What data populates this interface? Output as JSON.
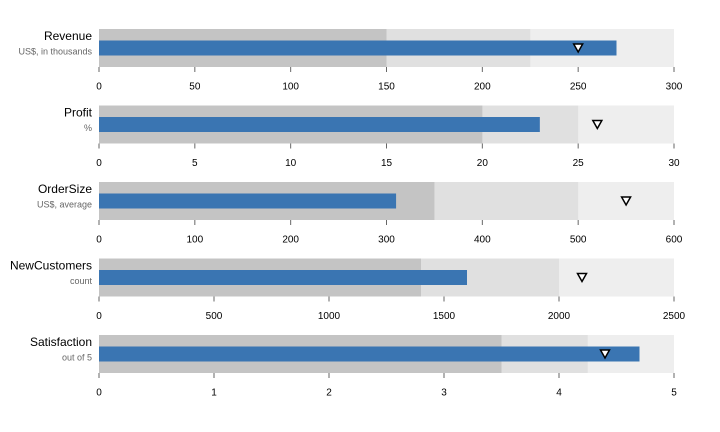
{
  "chart_data": [
    {
      "type": "bullet",
      "title": "Revenue",
      "subtitle": "US$, in thousands",
      "ranges": [
        150,
        225,
        300
      ],
      "measure": 270,
      "marker": 250,
      "xlim": [
        0,
        300
      ],
      "xticks": [
        0,
        50,
        100,
        150,
        200,
        250,
        300
      ],
      "range_colors": [
        "#c4c4c4",
        "#e0e0e0",
        "#eeeeee"
      ],
      "color": "#3a75b2"
    },
    {
      "type": "bullet",
      "title": "Profit",
      "subtitle": "%",
      "ranges": [
        20,
        25,
        30
      ],
      "measure": 23,
      "marker": 26,
      "xlim": [
        0,
        30
      ],
      "xticks": [
        0,
        5,
        10,
        15,
        20,
        25,
        30
      ],
      "range_colors": [
        "#c4c4c4",
        "#e0e0e0",
        "#eeeeee"
      ],
      "color": "#3a75b2"
    },
    {
      "type": "bullet",
      "title": "OrderSize",
      "subtitle": "US$, average",
      "ranges": [
        350,
        500,
        600
      ],
      "measure": 310,
      "marker": 550,
      "xlim": [
        0,
        600
      ],
      "xticks": [
        0,
        100,
        200,
        300,
        400,
        500,
        600
      ],
      "range_colors": [
        "#c4c4c4",
        "#e0e0e0",
        "#eeeeee"
      ],
      "color": "#3a75b2"
    },
    {
      "type": "bullet",
      "title": "NewCustomers",
      "subtitle": "count",
      "ranges": [
        1400,
        2000,
        2500
      ],
      "measure": 1600,
      "marker": 2100,
      "xlim": [
        0,
        2500
      ],
      "xticks": [
        0,
        500,
        1000,
        1500,
        2000,
        2500
      ],
      "range_colors": [
        "#c4c4c4",
        "#e0e0e0",
        "#eeeeee"
      ],
      "color": "#3a75b2"
    },
    {
      "type": "bullet",
      "title": "Satisfaction",
      "subtitle": "out of 5",
      "ranges": [
        3.5,
        4.25,
        5
      ],
      "measure": 4.7,
      "marker": 4.4,
      "xlim": [
        0,
        5
      ],
      "xticks": [
        0,
        1,
        2,
        3,
        4,
        5
      ],
      "range_colors": [
        "#c4c4c4",
        "#e0e0e0",
        "#eeeeee"
      ],
      "color": "#3a75b2"
    }
  ]
}
